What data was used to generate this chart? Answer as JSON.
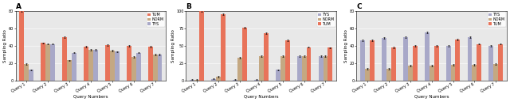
{
  "panel_A": {
    "title": "A",
    "xlabel": "Query Numbers",
    "ylabel": "Sampling Ratio",
    "queries": [
      "Query 1",
      "Query 2",
      "Query 3",
      "Query 4",
      "Query 5",
      "Query 6",
      "Query 7"
    ],
    "legend_labels": [
      "TUM",
      "NORM",
      "TYS"
    ],
    "colors": [
      "#E8735A",
      "#C4A882",
      "#A8A8C8"
    ],
    "values": [
      [
        80,
        43,
        50,
        39,
        41,
        40,
        39
      ],
      [
        19,
        42,
        23,
        35,
        34,
        27,
        30
      ],
      [
        12,
        42,
        32,
        35,
        33,
        32,
        30
      ]
    ],
    "errors": [
      [
        1.0,
        0.8,
        0.8,
        0.8,
        0.8,
        0.8,
        0.8
      ],
      [
        0.8,
        0.8,
        0.8,
        0.8,
        0.8,
        0.8,
        0.8
      ],
      [
        0.8,
        0.8,
        0.8,
        0.8,
        0.8,
        0.8,
        0.8
      ]
    ],
    "ylim": [
      0,
      80
    ],
    "yticks": [
      0,
      20,
      40,
      60,
      80
    ]
  },
  "panel_B": {
    "title": "B",
    "xlabel": "Query Numbers",
    "ylabel": "Sampling Ratio",
    "queries": [
      "Query 1",
      "Query 2",
      "Query 3",
      "Query 4",
      "Query 5",
      "Query 6",
      "Query 7"
    ],
    "legend_labels": [
      "TYS",
      "NORM",
      "TUM"
    ],
    "colors": [
      "#A8A8C8",
      "#C4A882",
      "#E8735A"
    ],
    "values": [
      [
        1,
        2,
        1,
        1,
        15,
        35,
        35
      ],
      [
        1,
        5,
        33,
        35,
        35,
        35,
        35
      ],
      [
        100,
        95,
        76,
        68,
        58,
        48,
        47
      ]
    ],
    "errors": [
      [
        0.5,
        0.5,
        0.5,
        0.5,
        1.0,
        1.0,
        1.0
      ],
      [
        0.5,
        1.0,
        1.0,
        1.0,
        1.0,
        1.0,
        1.0
      ],
      [
        1.0,
        1.0,
        1.0,
        1.0,
        1.0,
        1.0,
        1.0
      ]
    ],
    "ylim": [
      0,
      100
    ],
    "yticks": [
      0,
      25,
      50,
      75,
      100
    ]
  },
  "panel_C": {
    "title": "C",
    "xlabel": "Query Numbers",
    "ylabel": "Sampling Ratio",
    "queries": [
      "Query 1",
      "Query 2",
      "Query 3",
      "Query 4",
      "Query 5",
      "Query 6",
      "Query 7"
    ],
    "legend_labels": [
      "TYS",
      "NORM",
      "TUM"
    ],
    "colors": [
      "#A8A8C8",
      "#C4A882",
      "#E8735A"
    ],
    "values": [
      [
        46,
        49,
        50,
        55,
        40,
        50,
        40
      ],
      [
        13,
        13,
        17,
        17,
        18,
        18,
        19
      ],
      [
        46,
        38,
        40,
        40,
        47,
        42,
        42
      ]
    ],
    "errors": [
      [
        0.8,
        0.8,
        0.8,
        0.8,
        0.8,
        0.8,
        0.8
      ],
      [
        0.8,
        0.8,
        0.8,
        0.8,
        0.8,
        0.8,
        0.8
      ],
      [
        0.8,
        0.8,
        0.8,
        0.8,
        0.8,
        0.8,
        0.8
      ]
    ],
    "ylim": [
      0,
      80
    ],
    "yticks": [
      0,
      20,
      40,
      60,
      80
    ]
  },
  "bg_color": "#E8E8E8",
  "bar_width": 0.22,
  "legend_fontsize": 3.5,
  "axis_label_fontsize": 4.0,
  "tick_fontsize": 3.5,
  "title_fontsize": 6.5
}
